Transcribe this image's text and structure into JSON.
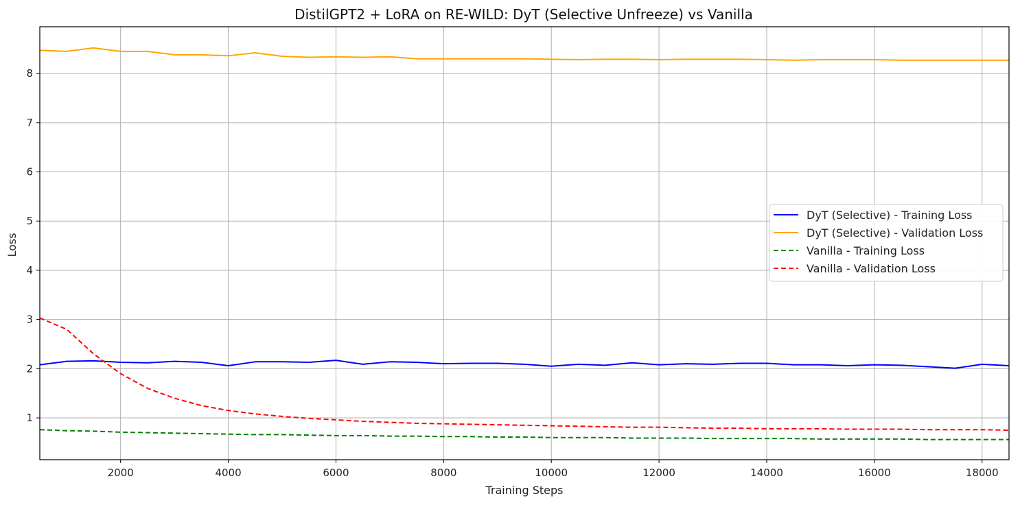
{
  "chart_data": {
    "type": "line",
    "title": "DistilGPT2 + LoRA on RE-WILD: DyT (Selective Unfreeze) vs Vanilla",
    "xlabel": "Training Steps",
    "ylabel": "Loss",
    "xlim": [
      500,
      18500
    ],
    "ylim": [
      0.15,
      8.95
    ],
    "xticks": [
      2000,
      4000,
      6000,
      8000,
      10000,
      12000,
      14000,
      16000,
      18000
    ],
    "yticks": [
      1,
      2,
      3,
      4,
      5,
      6,
      7,
      8
    ],
    "grid": true,
    "legend_position": "center-right",
    "series": [
      {
        "name": "DyT (Selective) - Training Loss",
        "color": "#0000ff",
        "style": "solid",
        "x": [
          500,
          1000,
          1500,
          2000,
          2500,
          3000,
          3500,
          4000,
          4500,
          5000,
          5500,
          6000,
          6500,
          7000,
          7500,
          8000,
          8500,
          9000,
          9500,
          10000,
          10500,
          11000,
          11500,
          12000,
          12500,
          13000,
          13500,
          14000,
          14500,
          15000,
          15500,
          16000,
          16500,
          17000,
          17500,
          18000,
          18500
        ],
        "values": [
          2.08,
          2.15,
          2.16,
          2.13,
          2.12,
          2.15,
          2.13,
          2.06,
          2.14,
          2.14,
          2.13,
          2.17,
          2.09,
          2.14,
          2.13,
          2.1,
          2.11,
          2.11,
          2.09,
          2.05,
          2.09,
          2.07,
          2.12,
          2.08,
          2.1,
          2.09,
          2.11,
          2.11,
          2.08,
          2.08,
          2.06,
          2.08,
          2.07,
          2.04,
          2.01,
          2.09,
          2.06
        ]
      },
      {
        "name": "DyT (Selective) - Validation Loss",
        "color": "#ffa500",
        "style": "solid",
        "x": [
          500,
          1000,
          1500,
          2000,
          2500,
          3000,
          3500,
          4000,
          4500,
          5000,
          5500,
          6000,
          6500,
          7000,
          7500,
          8000,
          8500,
          9000,
          9500,
          10000,
          10500,
          11000,
          11500,
          12000,
          12500,
          13000,
          13500,
          14000,
          14500,
          15000,
          15500,
          16000,
          16500,
          17000,
          17500,
          18000,
          18500
        ],
        "values": [
          8.47,
          8.45,
          8.52,
          8.45,
          8.45,
          8.38,
          8.38,
          8.36,
          8.42,
          8.35,
          8.33,
          8.34,
          8.33,
          8.34,
          8.3,
          8.3,
          8.3,
          8.3,
          8.3,
          8.29,
          8.28,
          8.29,
          8.29,
          8.28,
          8.29,
          8.29,
          8.29,
          8.28,
          8.27,
          8.28,
          8.28,
          8.28,
          8.27,
          8.27,
          8.27,
          8.27,
          8.27
        ]
      },
      {
        "name": "Vanilla - Training Loss",
        "color": "#008000",
        "style": "dashed",
        "x": [
          500,
          1000,
          1500,
          2000,
          2500,
          3000,
          3500,
          4000,
          4500,
          5000,
          5500,
          6000,
          6500,
          7000,
          7500,
          8000,
          8500,
          9000,
          9500,
          10000,
          10500,
          11000,
          11500,
          12000,
          12500,
          13000,
          13500,
          14000,
          14500,
          15000,
          15500,
          16000,
          16500,
          17000,
          17500,
          18000,
          18500
        ],
        "values": [
          0.76,
          0.74,
          0.73,
          0.71,
          0.7,
          0.69,
          0.68,
          0.67,
          0.66,
          0.66,
          0.65,
          0.64,
          0.64,
          0.63,
          0.63,
          0.62,
          0.62,
          0.61,
          0.61,
          0.6,
          0.6,
          0.6,
          0.59,
          0.59,
          0.59,
          0.58,
          0.58,
          0.58,
          0.58,
          0.57,
          0.57,
          0.57,
          0.57,
          0.56,
          0.56,
          0.56,
          0.56
        ]
      },
      {
        "name": "Vanilla - Validation Loss",
        "color": "#ff0000",
        "style": "dashed",
        "x": [
          500,
          1000,
          1500,
          2000,
          2500,
          3000,
          3500,
          4000,
          4500,
          5000,
          5500,
          6000,
          6500,
          7000,
          7500,
          8000,
          8500,
          9000,
          9500,
          10000,
          10500,
          11000,
          11500,
          12000,
          12500,
          13000,
          13500,
          14000,
          14500,
          15000,
          15500,
          16000,
          16500,
          17000,
          17500,
          18000,
          18500
        ],
        "values": [
          3.03,
          2.8,
          2.3,
          1.9,
          1.6,
          1.4,
          1.25,
          1.15,
          1.08,
          1.03,
          0.99,
          0.96,
          0.93,
          0.91,
          0.89,
          0.88,
          0.87,
          0.86,
          0.85,
          0.84,
          0.83,
          0.82,
          0.81,
          0.81,
          0.8,
          0.79,
          0.79,
          0.78,
          0.78,
          0.78,
          0.77,
          0.77,
          0.77,
          0.76,
          0.76,
          0.76,
          0.75
        ]
      }
    ]
  }
}
